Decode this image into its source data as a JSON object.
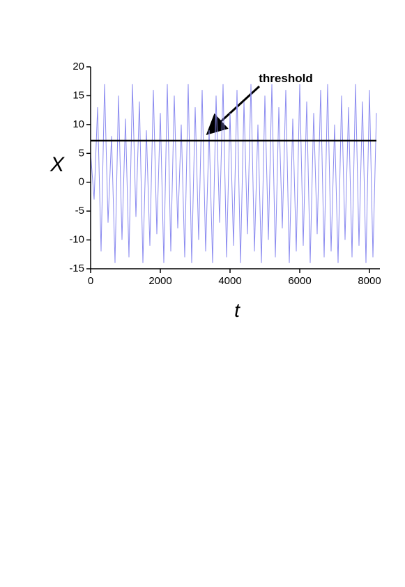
{
  "chart_data": {
    "type": "line",
    "xlabel": "t",
    "ylabel": "X",
    "x": [
      0,
      100,
      200,
      300,
      400,
      500,
      600,
      700,
      800,
      900,
      1000,
      1100,
      1200,
      1300,
      1400,
      1500,
      1600,
      1700,
      1800,
      1900,
      2000,
      2100,
      2200,
      2300,
      2400,
      2500,
      2600,
      2700,
      2800,
      2900,
      3000,
      3100,
      3200,
      3300,
      3400,
      3500,
      3600,
      3700,
      3800,
      3900,
      4000,
      4100,
      4200,
      4300,
      4400,
      4500,
      4600,
      4700,
      4800,
      4900,
      5000,
      5100,
      5200,
      5300,
      5400,
      5500,
      5600,
      5700,
      5800,
      5900,
      6000,
      6100,
      6200,
      6300,
      6400,
      6500,
      6600,
      6700,
      6800,
      6900,
      7000,
      7100,
      7200,
      7300,
      7400,
      7500,
      7600,
      7700,
      7800,
      7900,
      8000,
      8100,
      8200
    ],
    "values": [
      5,
      -3,
      13,
      -12,
      17,
      -7,
      8,
      -14,
      15,
      -10,
      11,
      -13,
      17,
      -6,
      14,
      -14,
      9,
      -11,
      16,
      -9,
      12,
      -14,
      17,
      -12,
      15,
      -8,
      10,
      -13,
      17,
      -14,
      13,
      -10,
      16,
      -12,
      9,
      -14,
      15,
      -7,
      17,
      -13,
      12,
      -11,
      16,
      -14,
      14,
      -9,
      17,
      -12,
      10,
      -14,
      15,
      -10,
      17,
      -13,
      13,
      -8,
      16,
      -14,
      11,
      -12,
      17,
      -11,
      14,
      -14,
      12,
      -9,
      16,
      -13,
      17,
      -12,
      10,
      -14,
      15,
      -10,
      13,
      -13,
      17,
      -11,
      14,
      -14,
      16,
      -13,
      12
    ],
    "color": "#8c8cf0",
    "threshold": {
      "value": 7.2,
      "label": "threshold"
    },
    "xlim": [
      0,
      8300
    ],
    "ylim": [
      -15,
      20
    ],
    "xticks": [
      0,
      2000,
      4000,
      6000,
      8000
    ],
    "yticks": [
      -15,
      -10,
      -5,
      0,
      5,
      10,
      15,
      20
    ]
  }
}
